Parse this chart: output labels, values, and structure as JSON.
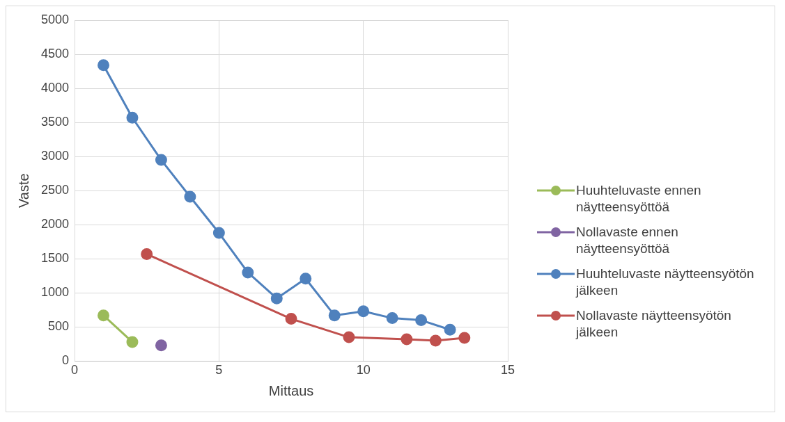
{
  "chart_data": {
    "type": "line",
    "xlabel": "Mittaus",
    "ylabel": "Vaste",
    "xlim": [
      0,
      15
    ],
    "xticks": [
      0,
      5,
      10,
      15
    ],
    "ylim": [
      0,
      5000
    ],
    "yticks": [
      0,
      500,
      1000,
      1500,
      2000,
      2500,
      3000,
      3500,
      4000,
      4500,
      5000
    ],
    "grid": true,
    "legend": "right",
    "marker": "circle",
    "line_style": "solid",
    "series": [
      {
        "name": "Huuhteluvaste ennen näytteensyöttöä",
        "color": "#9bbb59",
        "x": [
          1,
          2
        ],
        "values": [
          670,
          280
        ]
      },
      {
        "name": "Nollavaste ennen näytteensyöttöä",
        "color": "#8064a2",
        "x": [
          3
        ],
        "values": [
          230
        ]
      },
      {
        "name": "Huuhteluvaste näytteensyötön jälkeen",
        "color": "#4f81bd",
        "x": [
          1,
          2,
          3,
          4,
          5,
          6,
          7,
          8,
          9,
          10,
          11,
          12,
          13
        ],
        "values": [
          4340,
          3570,
          2950,
          2410,
          1880,
          1300,
          920,
          1210,
          670,
          730,
          630,
          600,
          460
        ]
      },
      {
        "name": "Nollavaste näytteensyötön jälkeen",
        "color": "#c0504d",
        "x": [
          2.5,
          7.5,
          9.5,
          11.5,
          12.5,
          13.5
        ],
        "values": [
          1570,
          620,
          350,
          320,
          300,
          340
        ]
      }
    ]
  }
}
